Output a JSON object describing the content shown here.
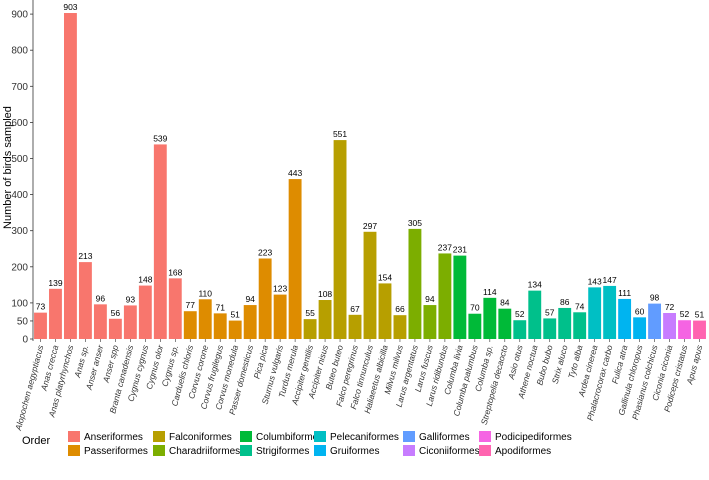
{
  "chart_data": {
    "type": "bar",
    "title": "",
    "xlabel": "",
    "ylabel": "Number of birds sampled",
    "ylim": [
      0,
      950
    ],
    "yticks": [
      0,
      50,
      100,
      200,
      300,
      400,
      500,
      600,
      700,
      800,
      900
    ],
    "legend_title": "Order",
    "legend_position": "bottom",
    "orders": [
      {
        "name": "Anseriformes",
        "color": "#F8766D"
      },
      {
        "name": "Passeriformes",
        "color": "#DE8C00"
      },
      {
        "name": "Falconiformes",
        "color": "#B79F00"
      },
      {
        "name": "Charadriiformes",
        "color": "#7CAE00"
      },
      {
        "name": "Columbiformes",
        "color": "#00BA38"
      },
      {
        "name": "Strigiformes",
        "color": "#00C08B"
      },
      {
        "name": "Pelecaniformes",
        "color": "#00BFC4"
      },
      {
        "name": "Gruiformes",
        "color": "#00B4F0"
      },
      {
        "name": "Galliformes",
        "color": "#619CFF"
      },
      {
        "name": "Ciconiiformes",
        "color": "#C77CFF"
      },
      {
        "name": "Podicipediformes",
        "color": "#F564E3"
      },
      {
        "name": "Apodiformes",
        "color": "#FF64B0"
      }
    ],
    "categories": [
      "Alopochen aegyptiacus",
      "Anas crecca",
      "Anas platyrhynchos",
      "Anas sp.",
      "Anser anser",
      "Anser spp",
      "Branta canadensis",
      "Cygnus cygnus",
      "Cygnus olor",
      "Cygnus sp.",
      "Carduelis chloris",
      "Corvus corone",
      "Corvus frugilegus",
      "Corvus monedula",
      "Passer domesticus",
      "Pica pica",
      "Sturnus vulgaris",
      "Turdus merula",
      "Accipiter gentilis",
      "Accipiter nisus",
      "Buteo buteo",
      "Falco peregrinus",
      "Falco tinnunculus",
      "Haliaeetus albicilla",
      "Milvus milvus",
      "Larus argentatus",
      "Larus fuscus",
      "Larus ridibundus",
      "Columba livia",
      "Columba palumbus",
      "Columba sp.",
      "Streptopelia decaocto",
      "Asio otus",
      "Athene noctua",
      "Bubo bubo",
      "Strix aluco",
      "Tyto alba",
      "Ardea cinerea",
      "Phalacrocorax carbo",
      "Fulica atra",
      "Gallinula chloropus",
      "Phasianus colchicus",
      "Ciconia ciconia",
      "Podiceps cristatus",
      "Apus apus"
    ],
    "values": [
      73,
      139,
      903,
      213,
      96,
      56,
      93,
      148,
      539,
      168,
      77,
      110,
      71,
      51,
      94,
      223,
      123,
      443,
      55,
      108,
      551,
      67,
      297,
      154,
      66,
      305,
      94,
      237,
      231,
      70,
      114,
      84,
      52,
      134,
      57,
      86,
      74,
      143,
      147,
      111,
      60,
      98,
      72,
      52,
      51
    ],
    "order_index": [
      0,
      0,
      0,
      0,
      0,
      0,
      0,
      0,
      0,
      0,
      1,
      1,
      1,
      1,
      1,
      1,
      1,
      1,
      2,
      2,
      2,
      2,
      2,
      2,
      2,
      3,
      3,
      3,
      4,
      4,
      4,
      4,
      5,
      5,
      5,
      5,
      5,
      6,
      6,
      7,
      7,
      8,
      9,
      10,
      11
    ]
  }
}
